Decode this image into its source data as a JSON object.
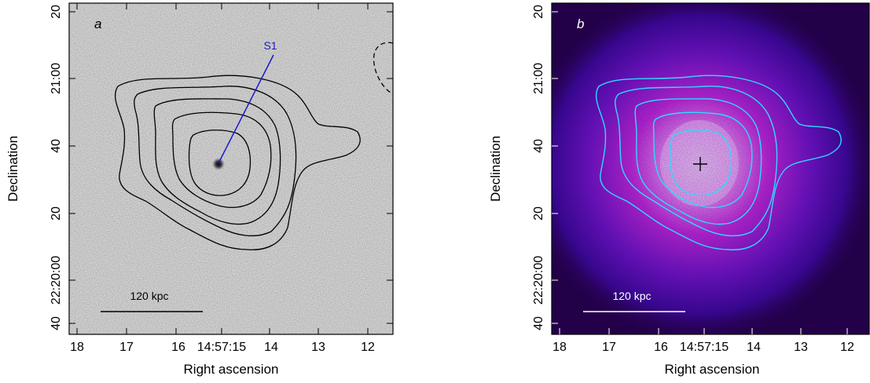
{
  "panels": [
    {
      "id": "a",
      "panel_letter": "a",
      "source_label": "S1",
      "scalebar_label": "120 kpc",
      "xlabel": "Right ascension",
      "ylabel": "Declination",
      "xticks": [
        "18",
        "17",
        "16",
        "14:57:15",
        "14",
        "13",
        "12"
      ],
      "yticks": [
        "20",
        "21:00",
        "40",
        "20",
        "22:20:00",
        "40"
      ],
      "colors": {
        "background": "#ececec",
        "contour": "#000000",
        "source_line": "#1a1acc",
        "source_label": "#1a1acc"
      }
    },
    {
      "id": "b",
      "panel_letter": "b",
      "scalebar_label": "120 kpc",
      "xlabel": "Right ascension",
      "ylabel": "Declination",
      "xticks": [
        "18",
        "17",
        "16",
        "14:57:15",
        "14",
        "13",
        "12"
      ],
      "yticks": [
        "20",
        "21:00",
        "40",
        "20",
        "22:20:00",
        "40"
      ],
      "colors": {
        "background": "#0a0020",
        "glow_outer": "#2a0aa0",
        "glow_mid": "#c020d8",
        "glow_core": "#ffe0ff",
        "contour": "#30d8ff",
        "marker": "#000000"
      }
    }
  ]
}
